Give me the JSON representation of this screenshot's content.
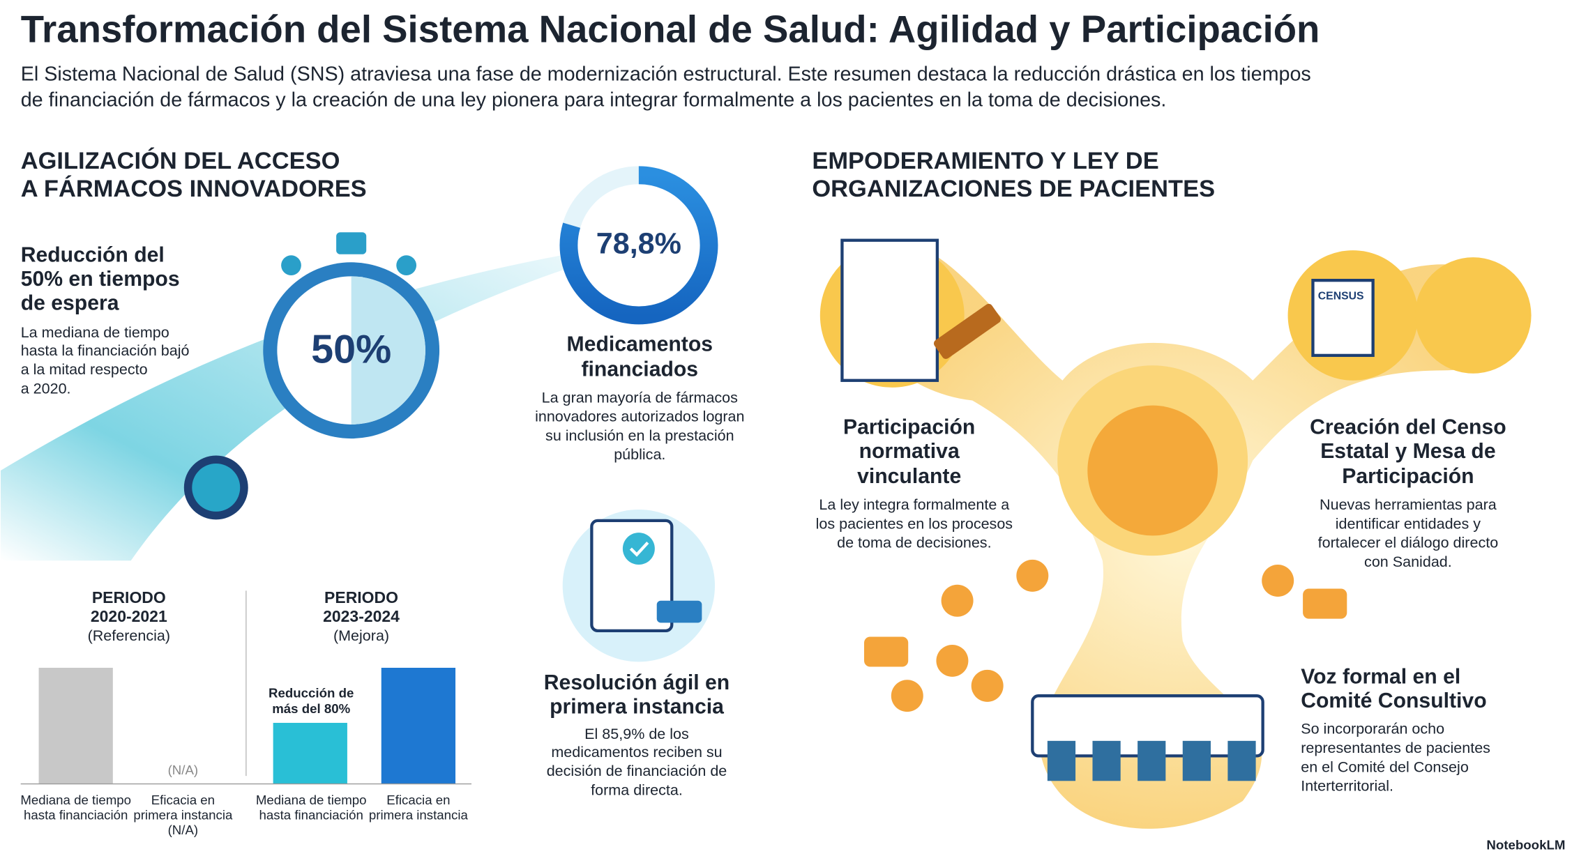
{
  "header": {
    "title": "Transformación del Sistema Nacional de Salud: Agilidad y Participación",
    "intro": [
      "El Sistema Nacional de Salud (SNS) atraviesa una fase de modernización estructural. Este resumen destaca la reducción drástica en los tiempos",
      "de financiación de fármacos y la creación de una ley pionera para integrar formalmente a los pacientes en la toma de decisiones."
    ]
  },
  "left": {
    "heading": [
      "AGILIZACIÓN DEL ACCESO",
      "A FÁRMACOS INNOVADORES"
    ],
    "reduction": {
      "title": [
        "Reducción del",
        "50% en tiempos",
        "de espera"
      ],
      "text": [
        "La mediana de tiempo",
        "hasta la financiación bajó",
        "a la mitad respecto",
        "a 2020."
      ],
      "badge": "50%"
    },
    "financed": {
      "badge": "78,8%",
      "title": [
        "Medicamentos",
        "financiados"
      ],
      "text": [
        "La gran mayoría de fármacos",
        "innovadores autorizados logran",
        "su inclusión en la prestación",
        "pública."
      ]
    },
    "resolution": {
      "title": [
        "Resolución ágil en",
        "primera instancia"
      ],
      "text": [
        "El 85,9% de los",
        "medicamentos reciben su",
        "decisión de financiación de",
        "forma directa."
      ]
    },
    "comparison": {
      "periods": [
        {
          "title": [
            "PERIODO",
            "2020-2021"
          ],
          "note": "(Referencia)"
        },
        {
          "title": [
            "PERIODO",
            "2023-2024"
          ],
          "note": "(Mejora)"
        }
      ],
      "na": "(N/A)",
      "bar_note": [
        "Reducción de",
        "más del 80%"
      ],
      "labels": [
        [
          "Mediana de tiempo",
          "hasta financiación"
        ],
        [
          "Eficacia en",
          "primera instancia",
          "(N/A)"
        ],
        [
          "Mediana de tiempo",
          "hasta financiación"
        ],
        [
          "Eficacia en",
          "primera instancia"
        ]
      ]
    }
  },
  "right": {
    "heading": [
      "EMPODERAMIENTO Y LEY DE",
      "ORGANIZACIONES DE PACIENTES"
    ],
    "normative": {
      "title": [
        "Participación",
        "normativa",
        "vinculante"
      ],
      "text": [
        "La ley integra formalmente a",
        "los pacientes en los procesos",
        "de toma de decisiones."
      ]
    },
    "census": {
      "icon": "CENSUS",
      "title": [
        "Creación del Censo",
        "Estatal y Mesa de",
        "Participación"
      ],
      "text": [
        "Nuevas herramientas para",
        "identificar entidades y",
        "fortalecer el diálogo directo",
        "con Sanidad."
      ]
    },
    "committee": {
      "title": [
        "Voz formal en el",
        "Comité Consultivo"
      ],
      "text": [
        "So incorporarán ocho",
        "representantes de pacientes",
        "en el Comité del Consejo",
        "Interterritorial."
      ]
    }
  },
  "footer": "NotebookLM"
}
